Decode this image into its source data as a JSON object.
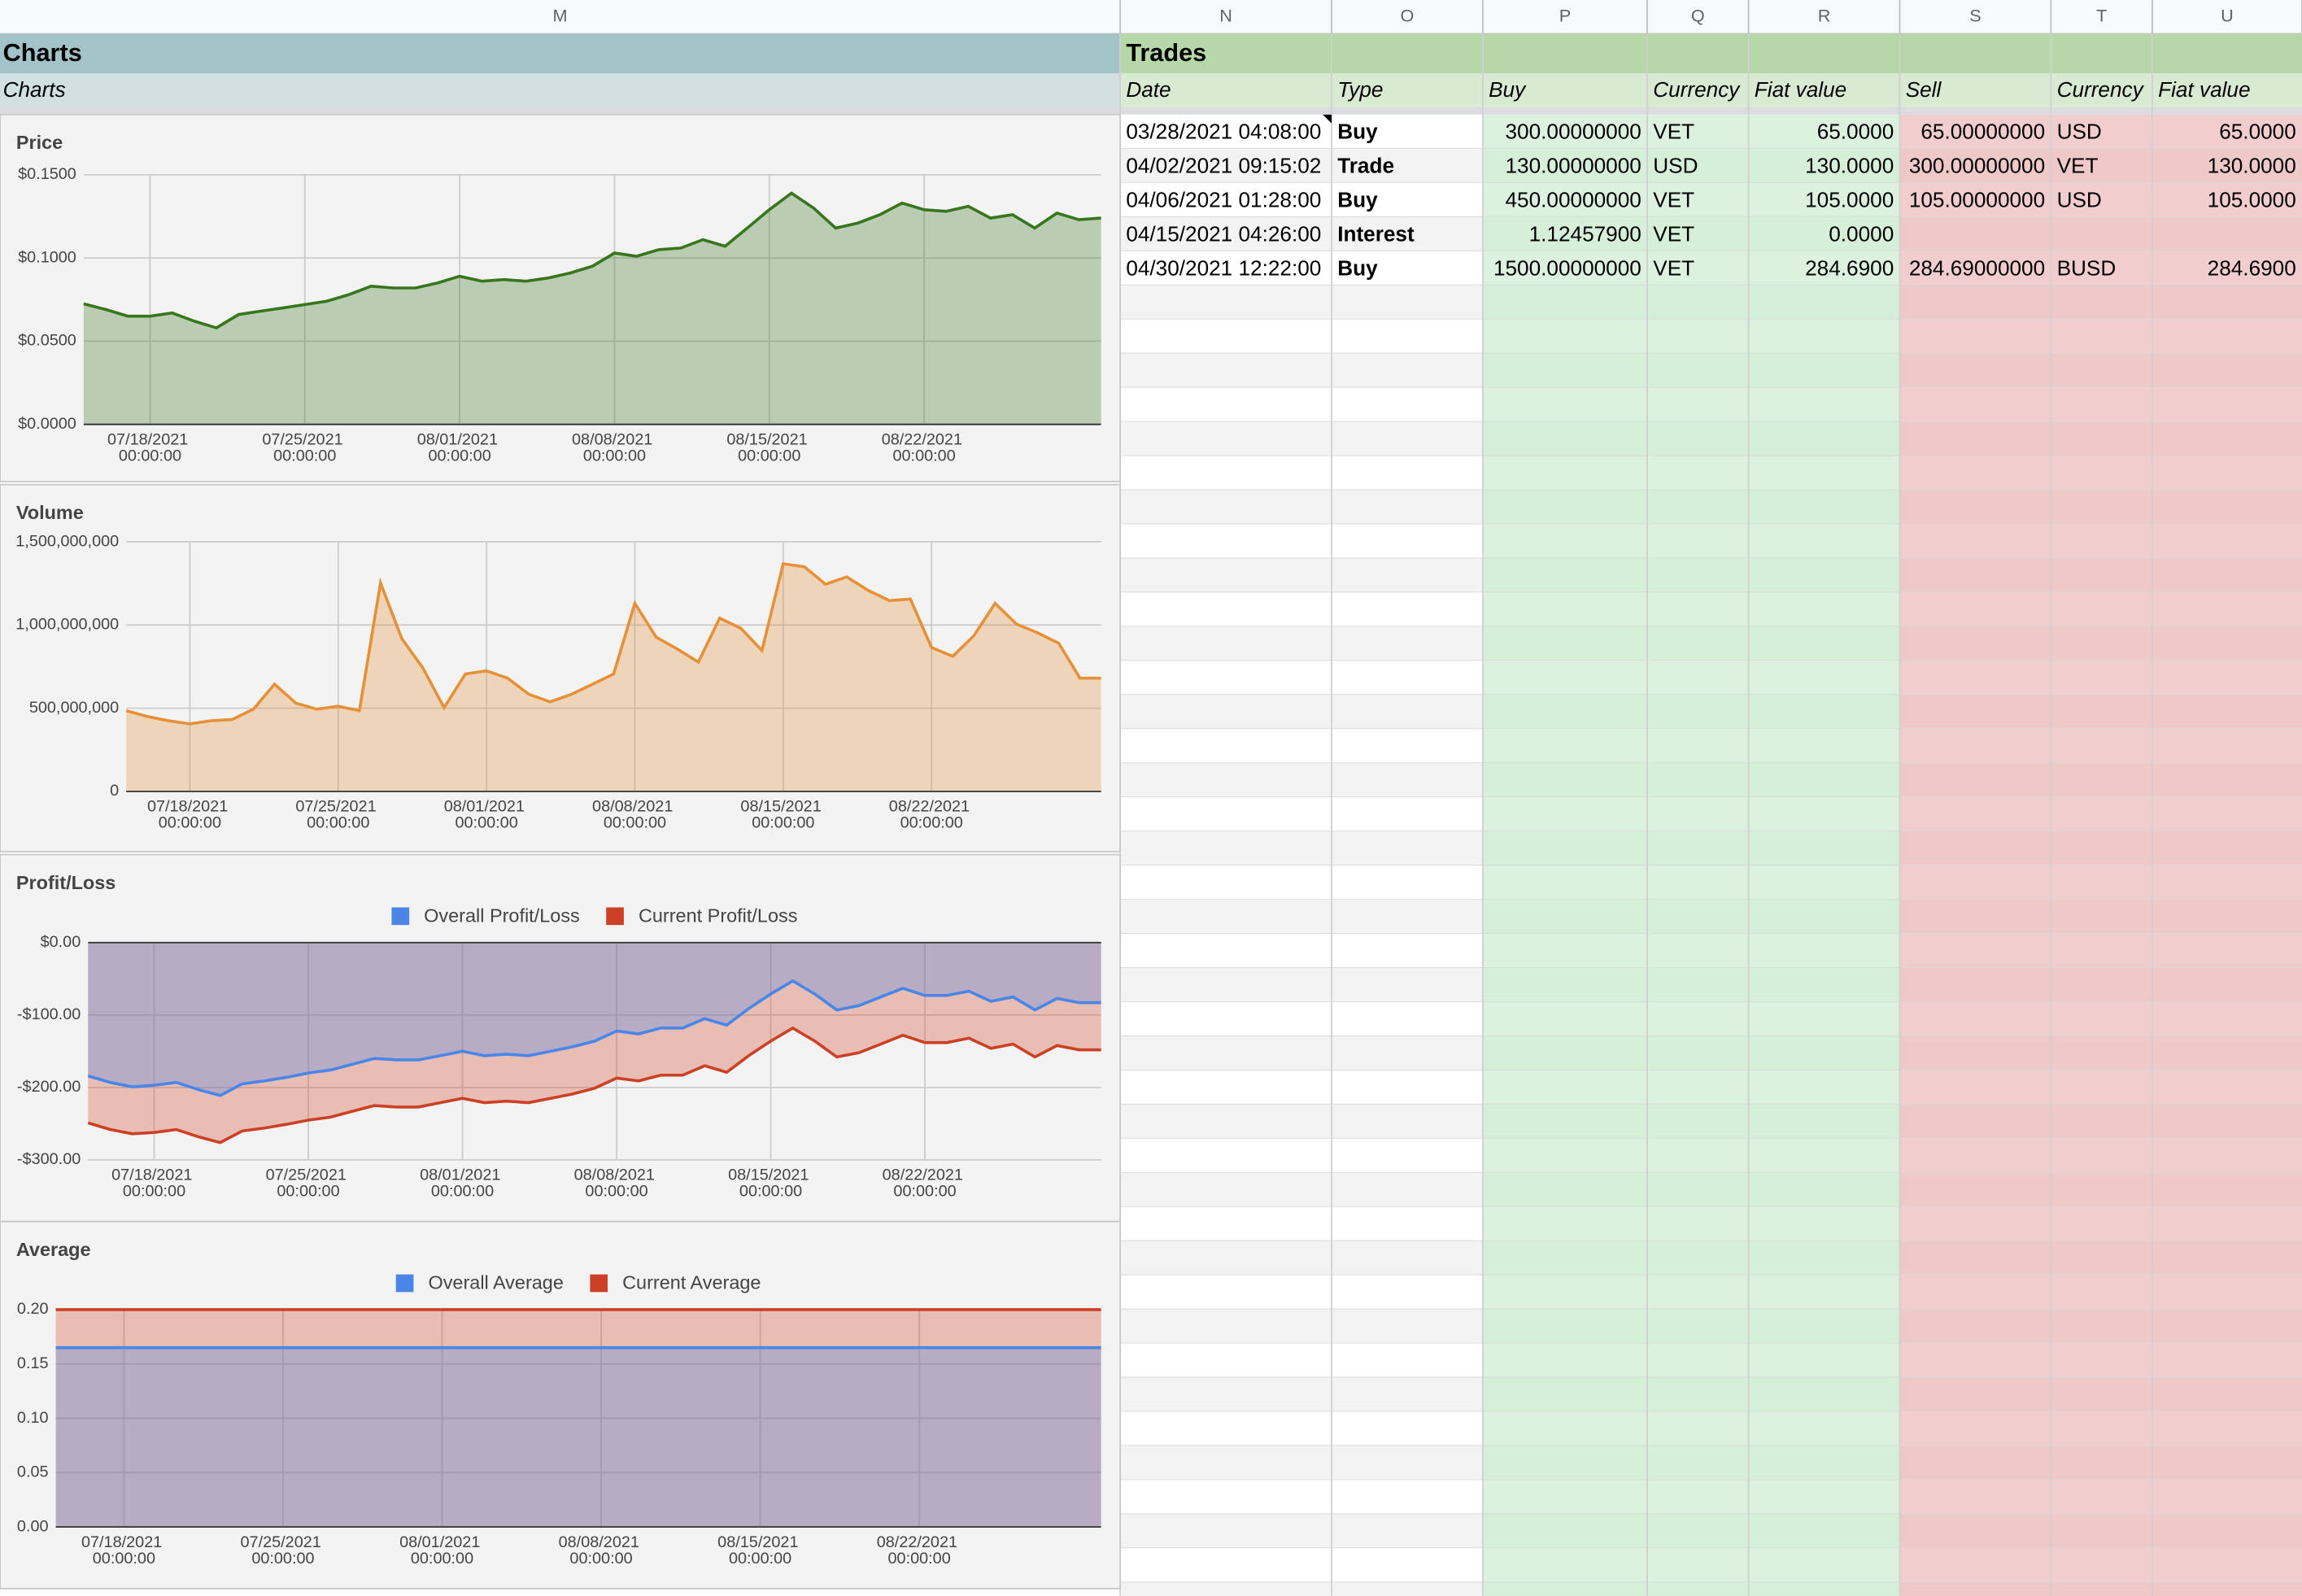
{
  "columns": [
    "M",
    "N",
    "O",
    "P",
    "Q",
    "R",
    "S",
    "T",
    "U"
  ],
  "sections": {
    "charts": "Charts",
    "trades": "Trades"
  },
  "charts_label": "Charts",
  "trades": {
    "headers": [
      "Date",
      "Type",
      "Buy",
      "Currency",
      "Fiat value",
      "Sell",
      "Currency",
      "Fiat value"
    ],
    "rows": [
      [
        "03/28/2021 04:08:00",
        "Buy",
        "300.00000000",
        "VET",
        "65.0000",
        "65.00000000",
        "USD",
        "65.0000"
      ],
      [
        "04/02/2021 09:15:02",
        "Trade",
        "130.00000000",
        "USD",
        "130.0000",
        "300.00000000",
        "VET",
        "130.0000"
      ],
      [
        "04/06/2021 01:28:00",
        "Buy",
        "450.00000000",
        "VET",
        "105.0000",
        "105.00000000",
        "USD",
        "105.0000"
      ],
      [
        "04/15/2021 04:26:00",
        "Interest",
        "1.12457900",
        "VET",
        "0.0000"
      ],
      [
        "04/30/2021 12:22:00",
        "Buy",
        "1500.00000000",
        "VET",
        "284.6900",
        "284.69000000",
        "BUSD",
        "284.6900"
      ]
    ],
    "type_colors": [
      "#38761d",
      "#20124d",
      "#38761d",
      "#38761d",
      "#38761d"
    ]
  },
  "chart_data": [
    {
      "type": "area",
      "title": "Price",
      "x": [
        "07/15/2021 00:00:00",
        "07/16/2021 00:00:00",
        "07/17/2021 00:00:00",
        "07/18/2021 00:00:00",
        "07/19/2021 00:00:00",
        "07/20/2021 00:00:00",
        "07/21/2021 00:00:00",
        "07/22/2021 00:00:00",
        "07/23/2021 00:00:00",
        "07/24/2021 00:00:00",
        "07/25/2021 00:00:00",
        "07/26/2021 00:00:00",
        "07/27/2021 00:00:00",
        "07/28/2021 00:00:00",
        "07/29/2021 00:00:00",
        "07/30/2021 00:00:00",
        "07/31/2021 00:00:00",
        "08/01/2021 00:00:00",
        "08/02/2021 00:00:00",
        "08/03/2021 00:00:00",
        "08/04/2021 00:00:00",
        "08/05/2021 00:00:00",
        "08/06/2021 00:00:00",
        "08/07/2021 00:00:00",
        "08/08/2021 00:00:00",
        "08/09/2021 00:00:00",
        "08/10/2021 00:00:00",
        "08/11/2021 00:00:00",
        "08/12/2021 00:00:00",
        "08/13/2021 00:00:00",
        "08/14/2021 00:00:00",
        "08/15/2021 00:00:00",
        "08/16/2021 00:00:00",
        "08/17/2021 00:00:00",
        "08/18/2021 00:00:00",
        "08/19/2021 00:00:00",
        "08/20/2021 00:00:00",
        "08/21/2021 00:00:00",
        "08/22/2021 00:00:00",
        "08/23/2021 00:00:00",
        "08/24/2021 00:00:00",
        "08/25/2021 00:00:00",
        "08/26/2021 00:00:00",
        "08/27/2021 00:00:00",
        "08/28/2021 00:00:00",
        "08/29/2021 00:00:00",
        "08/30/2021 00:00:00"
      ],
      "xticks": [
        "07/18/2021 00:00:00",
        "07/25/2021 00:00:00",
        "08/01/2021 00:00:00",
        "08/08/2021 00:00:00",
        "08/15/2021 00:00:00",
        "08/22/2021 00:00:00"
      ],
      "ylim": [
        0,
        0.15
      ],
      "yticks": [
        {
          "value": 0,
          "label": "$0.0000"
        },
        {
          "value": 0.05,
          "label": "$0.0500"
        },
        {
          "value": 0.1,
          "label": "$0.1000"
        },
        {
          "value": 0.15,
          "label": "$0.1500"
        }
      ],
      "grid": true,
      "series": [
        {
          "name": "Price",
          "color": "#38761d",
          "values": [
            0.0724,
            0.069,
            0.065,
            0.065,
            0.067,
            0.062,
            0.058,
            0.066,
            0.068,
            0.07,
            0.072,
            0.074,
            0.078,
            0.083,
            0.082,
            0.082,
            0.085,
            0.089,
            0.086,
            0.087,
            0.086,
            0.088,
            0.091,
            0.095,
            0.103,
            0.101,
            0.105,
            0.106,
            0.111,
            0.107,
            0.118,
            0.129,
            0.139,
            0.13,
            0.118,
            0.121,
            0.126,
            0.133,
            0.129,
            0.128,
            0.131,
            0.124,
            0.126,
            0.118,
            0.127,
            0.123,
            0.124
          ]
        }
      ]
    },
    {
      "type": "area",
      "title": "Volume",
      "x": [
        "07/15/2021 00:00:00",
        "07/16/2021 00:00:00",
        "07/17/2021 00:00:00",
        "07/18/2021 00:00:00",
        "07/19/2021 00:00:00",
        "07/20/2021 00:00:00",
        "07/21/2021 00:00:00",
        "07/22/2021 00:00:00",
        "07/23/2021 00:00:00",
        "07/24/2021 00:00:00",
        "07/25/2021 00:00:00",
        "07/26/2021 00:00:00",
        "07/27/2021 00:00:00",
        "07/28/2021 00:00:00",
        "07/29/2021 00:00:00",
        "07/30/2021 00:00:00",
        "07/31/2021 00:00:00",
        "08/01/2021 00:00:00",
        "08/02/2021 00:00:00",
        "08/03/2021 00:00:00",
        "08/04/2021 00:00:00",
        "08/05/2021 00:00:00",
        "08/06/2021 00:00:00",
        "08/07/2021 00:00:00",
        "08/08/2021 00:00:00",
        "08/09/2021 00:00:00",
        "08/10/2021 00:00:00",
        "08/11/2021 00:00:00",
        "08/12/2021 00:00:00",
        "08/13/2021 00:00:00",
        "08/14/2021 00:00:00",
        "08/15/2021 00:00:00",
        "08/16/2021 00:00:00",
        "08/17/2021 00:00:00",
        "08/18/2021 00:00:00",
        "08/19/2021 00:00:00",
        "08/20/2021 00:00:00",
        "08/21/2021 00:00:00",
        "08/22/2021 00:00:00",
        "08/23/2021 00:00:00",
        "08/24/2021 00:00:00",
        "08/25/2021 00:00:00",
        "08/26/2021 00:00:00",
        "08/27/2021 00:00:00",
        "08/28/2021 00:00:00",
        "08/29/2021 00:00:00",
        "08/30/2021 00:00:00"
      ],
      "xticks": [
        "07/18/2021 00:00:00",
        "07/25/2021 00:00:00",
        "08/01/2021 00:00:00",
        "08/08/2021 00:00:00",
        "08/15/2021 00:00:00",
        "08/22/2021 00:00:00"
      ],
      "ylim": [
        0,
        1500000000
      ],
      "yticks": [
        0,
        {
          "value": 500000000,
          "label": "500,000,000"
        },
        {
          "value": 1000000000,
          "label": "1,000,000,000"
        },
        {
          "value": 1500000000,
          "label": "1,500,000,000"
        }
      ],
      "grid": true,
      "series": [
        {
          "name": "Volume",
          "color": "#e69138",
          "values": [
            485000000,
            450000000,
            424000000,
            406000000,
            424000000,
            432000000,
            494000000,
            644000000,
            530000000,
            494000000,
            512000000,
            485000000,
            1253000000,
            918000000,
            741000000,
            503000000,
            706000000,
            724000000,
            680000000,
            583000000,
            538000000,
            583000000,
            644000000,
            706000000,
            1130000000,
            927000000,
            856000000,
            777000000,
            1041000000,
            980000000,
            847000000,
            1368000000,
            1350000000,
            1245000000,
            1289000000,
            1209000000,
            1147000000,
            1156000000,
            865000000,
            812000000,
            936000000,
            1130000000,
            1006000000,
            953000000,
            891000000,
            680000000,
            680000000
          ]
        }
      ]
    },
    {
      "type": "area",
      "title": "Profit/Loss",
      "legend": "top",
      "x": [
        "07/15/2021 00:00:00",
        "07/16/2021 00:00:00",
        "07/17/2021 00:00:00",
        "07/18/2021 00:00:00",
        "07/19/2021 00:00:00",
        "07/20/2021 00:00:00",
        "07/21/2021 00:00:00",
        "07/22/2021 00:00:00",
        "07/23/2021 00:00:00",
        "07/24/2021 00:00:00",
        "07/25/2021 00:00:00",
        "07/26/2021 00:00:00",
        "07/27/2021 00:00:00",
        "07/28/2021 00:00:00",
        "07/29/2021 00:00:00",
        "07/30/2021 00:00:00",
        "07/31/2021 00:00:00",
        "08/01/2021 00:00:00",
        "08/02/2021 00:00:00",
        "08/03/2021 00:00:00",
        "08/04/2021 00:00:00",
        "08/05/2021 00:00:00",
        "08/06/2021 00:00:00",
        "08/07/2021 00:00:00",
        "08/08/2021 00:00:00",
        "08/09/2021 00:00:00",
        "08/10/2021 00:00:00",
        "08/11/2021 00:00:00",
        "08/12/2021 00:00:00",
        "08/13/2021 00:00:00",
        "08/14/2021 00:00:00",
        "08/15/2021 00:00:00",
        "08/16/2021 00:00:00",
        "08/17/2021 00:00:00",
        "08/18/2021 00:00:00",
        "08/19/2021 00:00:00",
        "08/20/2021 00:00:00",
        "08/21/2021 00:00:00",
        "08/22/2021 00:00:00",
        "08/23/2021 00:00:00",
        "08/24/2021 00:00:00",
        "08/25/2021 00:00:00",
        "08/26/2021 00:00:00",
        "08/27/2021 00:00:00",
        "08/28/2021 00:00:00",
        "08/29/2021 00:00:00",
        "08/30/2021 00:00:00"
      ],
      "xticks": [
        "07/18/2021 00:00:00",
        "07/25/2021 00:00:00",
        "08/01/2021 00:00:00",
        "08/08/2021 00:00:00",
        "08/15/2021 00:00:00",
        "08/22/2021 00:00:00"
      ],
      "ylim": [
        -300,
        0
      ],
      "yticks": [
        {
          "value": -300,
          "label": "-$300.00"
        },
        {
          "value": -200,
          "label": "-$200.00"
        },
        {
          "value": -100,
          "label": "-$100.00"
        },
        {
          "value": 0,
          "label": "$0.00"
        }
      ],
      "grid": true,
      "series": [
        {
          "name": "Overall Profit/Loss",
          "color": "#4a86e8",
          "values": [
            -184,
            -193,
            -199,
            -197,
            -193,
            -203,
            -211,
            -195,
            -191,
            -186,
            -180,
            -176,
            -168,
            -160,
            -162,
            -162,
            -156,
            -150,
            -156,
            -154,
            -156,
            -150,
            -144,
            -136,
            -122,
            -126,
            -118,
            -118,
            -105,
            -114,
            -91,
            -71,
            -53,
            -71,
            -93,
            -87,
            -75,
            -63,
            -73,
            -73,
            -67,
            -81,
            -75,
            -93,
            -77,
            -83,
            -83
          ]
        },
        {
          "name": "Current Profit/Loss",
          "color": "#cc4125",
          "values": [
            -249,
            -258,
            -264,
            -262,
            -258,
            -268,
            -276,
            -260,
            -256,
            -251,
            -245,
            -241,
            -233,
            -225,
            -227,
            -227,
            -221,
            -215,
            -221,
            -219,
            -221,
            -215,
            -209,
            -201,
            -187,
            -191,
            -183,
            -183,
            -170,
            -179,
            -156,
            -136,
            -118,
            -136,
            -158,
            -152,
            -140,
            -128,
            -138,
            -138,
            -132,
            -146,
            -140,
            -158,
            -142,
            -148,
            -148
          ]
        }
      ]
    },
    {
      "type": "area",
      "title": "Average",
      "legend": "top",
      "x": [
        "07/15/2021 00:00:00",
        "07/16/2021 00:00:00",
        "07/17/2021 00:00:00",
        "07/18/2021 00:00:00",
        "07/19/2021 00:00:00",
        "07/20/2021 00:00:00",
        "07/21/2021 00:00:00",
        "07/22/2021 00:00:00",
        "07/23/2021 00:00:00",
        "07/24/2021 00:00:00",
        "07/25/2021 00:00:00",
        "07/26/2021 00:00:00",
        "07/27/2021 00:00:00",
        "07/28/2021 00:00:00",
        "07/29/2021 00:00:00",
        "07/30/2021 00:00:00",
        "07/31/2021 00:00:00",
        "08/01/2021 00:00:00",
        "08/02/2021 00:00:00",
        "08/03/2021 00:00:00",
        "08/04/2021 00:00:00",
        "08/05/2021 00:00:00",
        "08/06/2021 00:00:00",
        "08/07/2021 00:00:00",
        "08/08/2021 00:00:00",
        "08/09/2021 00:00:00",
        "08/10/2021 00:00:00",
        "08/11/2021 00:00:00",
        "08/12/2021 00:00:00",
        "08/13/2021 00:00:00",
        "08/14/2021 00:00:00",
        "08/15/2021 00:00:00",
        "08/16/2021 00:00:00",
        "08/17/2021 00:00:00",
        "08/18/2021 00:00:00",
        "08/19/2021 00:00:00",
        "08/20/2021 00:00:00",
        "08/21/2021 00:00:00",
        "08/22/2021 00:00:00",
        "08/23/2021 00:00:00",
        "08/24/2021 00:00:00",
        "08/25/2021 00:00:00",
        "08/26/2021 00:00:00",
        "08/27/2021 00:00:00",
        "08/28/2021 00:00:00",
        "08/29/2021 00:00:00",
        "08/30/2021 00:00:00"
      ],
      "xticks": [
        "07/18/2021 00:00:00",
        "07/25/2021 00:00:00",
        "08/01/2021 00:00:00",
        "08/08/2021 00:00:00",
        "08/15/2021 00:00:00",
        "08/22/2021 00:00:00"
      ],
      "ylim": [
        0,
        0.2
      ],
      "yticks": [
        {
          "value": 0,
          "label": "0.00"
        },
        {
          "value": 0.05,
          "label": "0.05"
        },
        {
          "value": 0.1,
          "label": "0.10"
        },
        {
          "value": 0.15,
          "label": "0.15"
        },
        {
          "value": 0.2,
          "label": "0.20"
        }
      ],
      "grid": true,
      "series": [
        {
          "name": "Overall Average",
          "color": "#4a86e8",
          "values": [
            0.165,
            0.165,
            0.165,
            0.165,
            0.165,
            0.165,
            0.165,
            0.165,
            0.165,
            0.165,
            0.165,
            0.165,
            0.165,
            0.165,
            0.165,
            0.165,
            0.165,
            0.165,
            0.165,
            0.165,
            0.165,
            0.165,
            0.165,
            0.165,
            0.165,
            0.165,
            0.165,
            0.165,
            0.165,
            0.165,
            0.165,
            0.165,
            0.165,
            0.165,
            0.165,
            0.165,
            0.165,
            0.165,
            0.165,
            0.165,
            0.165,
            0.165,
            0.165,
            0.165,
            0.165,
            0.165,
            0.165
          ]
        },
        {
          "name": "Current Average",
          "color": "#cc4125",
          "values": [
            0.2,
            0.2,
            0.2,
            0.2,
            0.2,
            0.2,
            0.2,
            0.2,
            0.2,
            0.2,
            0.2,
            0.2,
            0.2,
            0.2,
            0.2,
            0.2,
            0.2,
            0.2,
            0.2,
            0.2,
            0.2,
            0.2,
            0.2,
            0.2,
            0.2,
            0.2,
            0.2,
            0.2,
            0.2,
            0.2,
            0.2,
            0.2,
            0.2,
            0.2,
            0.2,
            0.2,
            0.2,
            0.2,
            0.2,
            0.2,
            0.2,
            0.2,
            0.2,
            0.2,
            0.2,
            0.2,
            0.2
          ]
        }
      ]
    }
  ]
}
